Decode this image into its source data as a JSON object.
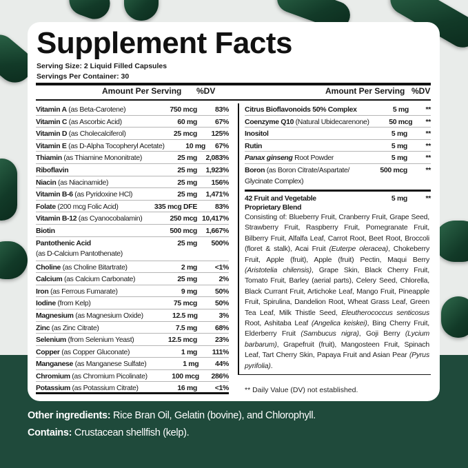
{
  "title": "Supplement Facts",
  "serving_size": "Serving Size: 2 Liquid Filled Capsules",
  "servings_per_container": "Servings Per Container: 30",
  "left_header": {
    "amount": "Amount Per Serving",
    "dv": "%DV"
  },
  "right_header": {
    "amount": "Amount Per Serving",
    "dv": "%DV"
  },
  "left_rows": [
    {
      "name": "Vitamin A",
      "detail": " (as Beta-Carotene)",
      "amount": "750 mcg",
      "dv": "83%"
    },
    {
      "name": "Vitamin C",
      "detail": " (as Ascorbic Acid)",
      "amount": "60 mg",
      "dv": "67%"
    },
    {
      "name": "Vitamin D",
      "detail": " (as Cholecalciferol)",
      "amount": "25 mcg",
      "dv": "125%"
    },
    {
      "name": "Vitamin E",
      "detail": " (as D-Alpha Tocopheryl Acetate)",
      "amount": "10 mg",
      "dv": "67%"
    },
    {
      "name": "Thiamin",
      "detail": " (as Thiamine Mononitrate)",
      "amount": "25 mg",
      "dv": "2,083%"
    },
    {
      "name": "Riboflavin",
      "detail": "",
      "amount": "25 mg",
      "dv": "1,923%"
    },
    {
      "name": "Niacin",
      "detail": " (as Niacinamide)",
      "amount": "25 mg",
      "dv": "156%"
    },
    {
      "name": "Vitamin B-6",
      "detail": " (as Pyridoxine HCl)",
      "amount": "25 mg",
      "dv": "1,471%"
    },
    {
      "name": "Folate",
      "detail": "  (200 mcg Folic Acid)",
      "amount": "335 mcg DFE",
      "dv": "83%"
    },
    {
      "name": "Vitamin B-12",
      "detail": " (as Cyanocobalamin)",
      "amount": "250 mcg",
      "dv": "10,417%"
    },
    {
      "name": "Biotin",
      "detail": "",
      "amount": "500 mcg",
      "dv": "1,667%"
    },
    {
      "name": "Pantothenic Acid",
      "detail": "",
      "sub": "(as D-Calcium Pantothenate)",
      "amount": "25 mg",
      "dv": "500%"
    },
    {
      "name": "Choline",
      "detail": " (as Choline Bitartrate)",
      "amount": "2 mg",
      "dv": "<1%"
    },
    {
      "name": "Calcium",
      "detail": " (as Calcium Carbonate)",
      "amount": "25 mg",
      "dv": "2%"
    },
    {
      "name": "Iron",
      "detail": " (as Ferrous Fumarate)",
      "amount": "9 mg",
      "dv": "50%"
    },
    {
      "name": "Iodine",
      "detail": " (from Kelp)",
      "amount": "75 mcg",
      "dv": "50%"
    },
    {
      "name": "Magnesium",
      "detail": " (as Magnesium Oxide)",
      "amount": "12.5 mg",
      "dv": "3%"
    },
    {
      "name": "Zinc",
      "detail": " (as Zinc Citrate)",
      "amount": "7.5 mg",
      "dv": "68%"
    },
    {
      "name": "Selenium",
      "detail": " (from Selenium Yeast)",
      "amount": "12.5  mcg",
      "dv": "23%"
    },
    {
      "name": "Copper",
      "detail": " (as Copper Gluconate)",
      "amount": "1 mg",
      "dv": "111%"
    },
    {
      "name": "Manganese",
      "detail": " (as Manganese Sulfate)",
      "amount": "1 mg",
      "dv": "44%"
    },
    {
      "name": "Chromium",
      "detail": " (as Chromium Picolinate)",
      "amount": "100 mcg",
      "dv": "286%"
    },
    {
      "name": "Potassium",
      "detail": " (as Potassium Citrate)",
      "amount": "16 mg",
      "dv": "<1%"
    }
  ],
  "right_rows": [
    {
      "name": "Citrus Bioflavonoids 50% Complex",
      "detail": "",
      "amount": "5 mg",
      "dv": "**"
    },
    {
      "name": "Coenzyme Q10",
      "detail": " (Natural Ubidecarenone)",
      "amount": "50 mcg",
      "dv": "**"
    },
    {
      "name": "Inositol",
      "detail": "",
      "amount": "5 mg",
      "dv": "**"
    },
    {
      "name": "Rutin",
      "detail": "",
      "amount": "5 mg",
      "dv": "**"
    },
    {
      "name": "Panax ginseng",
      "italic": true,
      "detail": " Root Powder",
      "amount": "5 mg",
      "dv": "**"
    },
    {
      "name": "Boron",
      "detail": " (as Boron Citrate/Aspartate/",
      "sub": "Glycinate Complex)",
      "amount": "500 mcg",
      "dv": "**"
    }
  ],
  "blend": {
    "name": "42 Fruit and Vegetable",
    "name2": "Proprietary Blend",
    "amount": "5 mg",
    "dv": "**",
    "segments": [
      {
        "t": "Consisting of: Blueberry Fruit, Cranberry Fruit, Grape Seed, Strawberry Fruit, Raspberry Fruit, Pomegranate Fruit, Bilberry Fruit, Alfalfa Leaf, Carrot Root, Beet Root, Broccoli (floret & stalk), Acai Fruit "
      },
      {
        "t": "(Euterpe oleracea)",
        "i": true
      },
      {
        "t": ", Chokeberry Fruit, Apple (fruit), Apple (fruit) Pectin, Maqui Berry "
      },
      {
        "t": "(Aristotelia chilensis)",
        "i": true
      },
      {
        "t": ", Grape Skin, Black Cherry Fruit, Tomato Fruit, Barley (aerial parts), Celery Seed, Chlorella, Black Currant Fruit, Artichoke Leaf, Mango Fruit, Pineapple Fruit, Spirulina, Dandelion Root, Wheat Grass Leaf, Green Tea Leaf, Milk Thistle Seed, "
      },
      {
        "t": "Eleutherococcus senticosus",
        "i": true
      },
      {
        "t": " Root, Ashitaba Leaf "
      },
      {
        "t": "(Angelica keiskei)",
        "i": true
      },
      {
        "t": ", Bing Cherry Fruit, Elderberry Fruit "
      },
      {
        "t": "(Sambucus nigra)",
        "i": true
      },
      {
        "t": ", Goji Berry "
      },
      {
        "t": "(Lycium barbarum)",
        "i": true
      },
      {
        "t": ", Grapefruit (fruit), Mangosteen Fruit, Spinach Leaf, Tart Cherry Skin, Papaya Fruit and Asian Pear "
      },
      {
        "t": "(Pyrus pyrifolia)",
        "i": true
      },
      {
        "t": "."
      }
    ]
  },
  "footnote": "** Daily Value (DV) not established.",
  "other_ingredients": {
    "label": "Other ingredients:",
    "value": " Rice Bran Oil, Gelatin (bovine), and Chlorophyll."
  },
  "contains": {
    "label": "Contains:",
    "value": " Crustacean shellfish (kelp)."
  },
  "colors": {
    "background_green": "#1f4a3b",
    "capsule": "#1a4a30"
  }
}
